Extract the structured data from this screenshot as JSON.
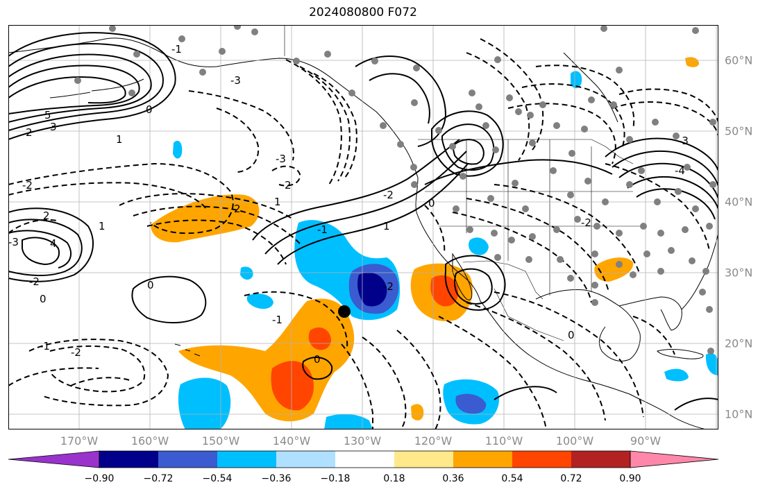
{
  "title": "2024080800 F072",
  "lon_labels": [
    "170°W",
    "160°W",
    "150°W",
    "140°W",
    "130°W",
    "120°W",
    "110°W",
    "100°W",
    "90°W"
  ],
  "lat_labels": [
    "60°N",
    "50°N",
    "40°N",
    "30°N",
    "20°N",
    "10°N"
  ],
  "colorbar": {
    "colors": [
      "#9933cc",
      "#00008b",
      "#3b5bd0",
      "#00bfff",
      "#b0e0ff",
      "#ffffff",
      "#ffe98a",
      "#ffa500",
      "#ff4500",
      "#b22222",
      "#ff88aa"
    ],
    "tick_labels": [
      "−0.90",
      "−0.72",
      "−0.54",
      "−0.36",
      "−0.18",
      "0.18",
      "0.36",
      "0.54",
      "0.72",
      "0.90"
    ]
  },
  "contour_labels": [
    "5",
    "3",
    "2",
    "1",
    "0",
    "-1",
    "-2",
    "-3",
    "4",
    "2",
    "1",
    "0",
    "-1",
    "-2",
    "-3",
    "-3",
    "2",
    "1",
    "0",
    "-1",
    "-2",
    "0",
    "2",
    "-2",
    "1",
    "0",
    "-1",
    "-2",
    "0",
    "-4",
    "-3",
    "-2"
  ],
  "colors": {
    "solid": "#000000",
    "stations": "#808080",
    "grid": "#b3b3b3"
  }
}
